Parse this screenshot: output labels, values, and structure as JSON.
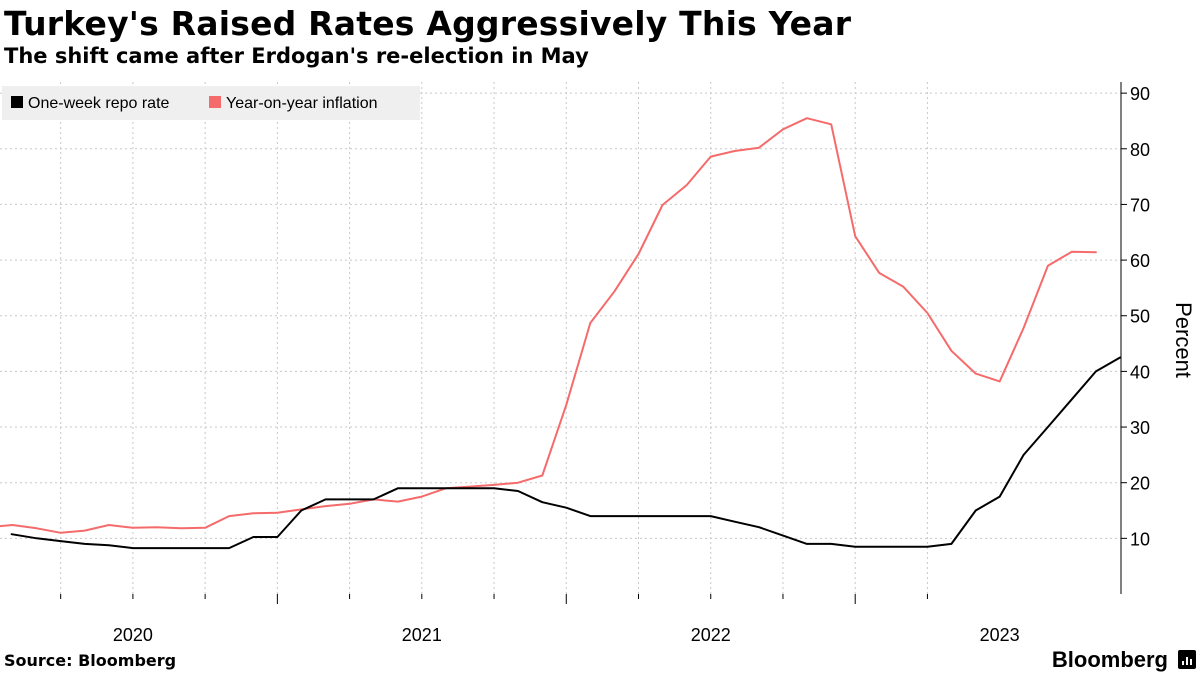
{
  "title": "Turkey's Raised Rates Aggressively This Year",
  "subtitle": "The shift came after Erdogan's re-election in May",
  "source": "Source: Bloomberg",
  "brand": "Bloomberg",
  "brand_icon": "bloomberg-terminal-icon",
  "colors": {
    "repo": "#000000",
    "inflation": "#f56b6b",
    "grid": "#c8c8c8",
    "legend_bg": "#efefef"
  },
  "chart_data": {
    "type": "line",
    "title": "Turkey's Raised Rates Aggressively This Year",
    "ylabel": "Percent",
    "ylim": [
      0,
      92
    ],
    "yticks": [
      10,
      20,
      30,
      40,
      50,
      60,
      70,
      80,
      90
    ],
    "y_axis_side": "right",
    "x_range": [
      2019.54,
      2023.42
    ],
    "xtick_labels": [
      {
        "label": "2020",
        "value": 2020.0
      },
      {
        "label": "2021",
        "value": 2021.0
      },
      {
        "label": "2022",
        "value": 2022.0
      },
      {
        "label": "2023",
        "value": 2023.0
      }
    ],
    "legend_position": "top-left",
    "grid": true,
    "series": [
      {
        "name": "One-week repo rate",
        "color": "#000000",
        "x": [
          2019.58,
          2019.667,
          2019.75,
          2019.833,
          2019.917,
          2020.0,
          2020.083,
          2020.167,
          2020.25,
          2020.333,
          2020.417,
          2020.5,
          2020.583,
          2020.667,
          2020.75,
          2020.833,
          2020.917,
          2021.0,
          2021.083,
          2021.167,
          2021.25,
          2021.333,
          2021.417,
          2021.5,
          2021.583,
          2021.667,
          2021.75,
          2021.833,
          2021.917,
          2022.0,
          2022.083,
          2022.167,
          2022.25,
          2022.333,
          2022.417,
          2022.5,
          2022.583,
          2022.667,
          2022.75,
          2022.833,
          2022.917,
          2023.0,
          2023.083,
          2023.167,
          2023.25,
          2023.333,
          2023.417
        ],
        "values": [
          10.75,
          10.0,
          9.5,
          9.0,
          8.75,
          8.25,
          8.25,
          8.25,
          8.25,
          8.25,
          10.25,
          10.25,
          15.0,
          17.0,
          17.0,
          17.0,
          19.0,
          19.0,
          19.0,
          19.0,
          19.0,
          18.5,
          16.5,
          15.5,
          14.0,
          14.0,
          14.0,
          14.0,
          14.0,
          14.0,
          13.0,
          12.0,
          10.5,
          9.0,
          9.0,
          8.5,
          8.5,
          8.5,
          8.5,
          9.0,
          15.0,
          17.5,
          25.0,
          30.0,
          35.0,
          40.0,
          42.5
        ]
      },
      {
        "name": "Year-on-year inflation",
        "color": "#f56b6b",
        "x": [
          2019.54,
          2019.583,
          2019.667,
          2019.75,
          2019.833,
          2019.917,
          2020.0,
          2020.083,
          2020.167,
          2020.25,
          2020.333,
          2020.417,
          2020.5,
          2020.583,
          2020.667,
          2020.75,
          2020.833,
          2020.917,
          2021.0,
          2021.083,
          2021.167,
          2021.25,
          2021.333,
          2021.417,
          2021.5,
          2021.583,
          2021.667,
          2021.75,
          2021.833,
          2021.917,
          2022.0,
          2022.083,
          2022.167,
          2022.25,
          2022.333,
          2022.417,
          2022.5,
          2022.583,
          2022.667,
          2022.75,
          2022.833,
          2022.917,
          2023.0,
          2023.083,
          2023.167,
          2023.25,
          2023.333
        ],
        "values": [
          12.2,
          12.4,
          11.8,
          11.0,
          11.4,
          12.4,
          11.9,
          12.0,
          11.8,
          11.9,
          14.0,
          14.5,
          14.6,
          15.2,
          15.8,
          16.2,
          17.0,
          16.6,
          17.5,
          19.0,
          19.3,
          19.6,
          20.0,
          21.3,
          34.0,
          48.7,
          54.4,
          61.1,
          69.9,
          73.5,
          78.6,
          79.6,
          80.2,
          83.5,
          85.5,
          84.4,
          64.3,
          57.7,
          55.2,
          50.5,
          43.7,
          39.6,
          38.2,
          47.8,
          59.0,
          61.5,
          61.4
        ]
      }
    ]
  }
}
